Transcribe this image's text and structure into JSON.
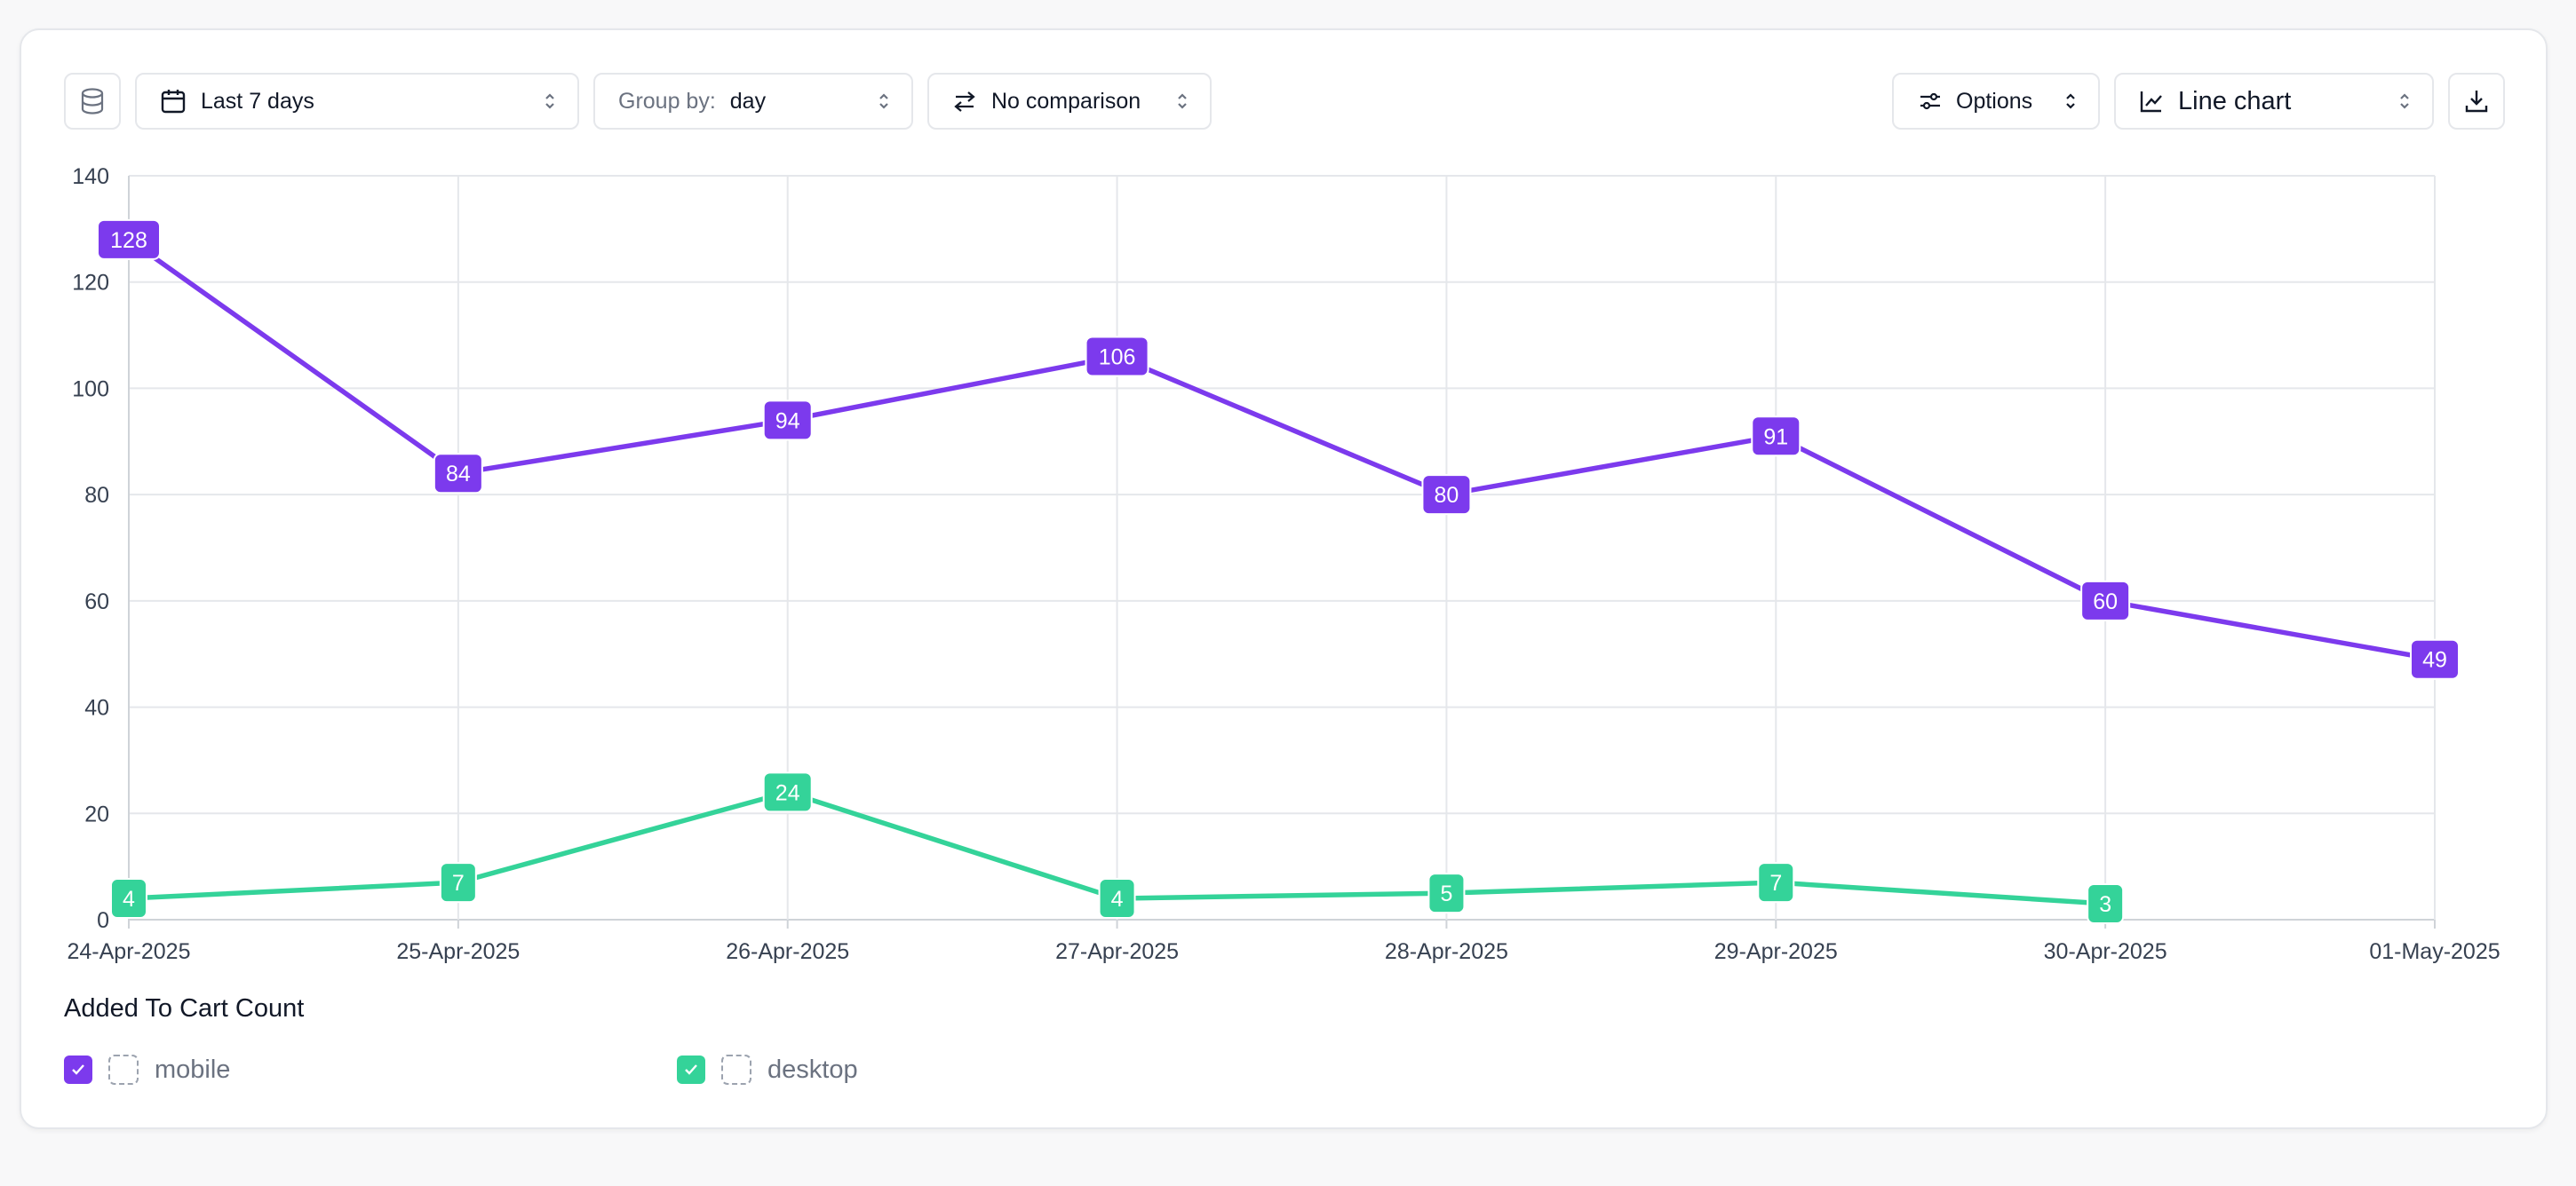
{
  "toolbar": {
    "date_range": "Last 7 days",
    "group_by_label": "Group by:",
    "group_by_value": "day",
    "comparison": "No comparison",
    "options": "Options",
    "chart_type": "Line chart"
  },
  "colors": {
    "mobile": "#7c3aed",
    "desktop": "#34d399"
  },
  "legend": {
    "title": "Added To Cart Count",
    "items": [
      {
        "name": "mobile",
        "checked": true
      },
      {
        "name": "desktop",
        "checked": true
      }
    ]
  },
  "chart_data": {
    "type": "line",
    "categories": [
      "24-Apr-2025",
      "25-Apr-2025",
      "26-Apr-2025",
      "27-Apr-2025",
      "28-Apr-2025",
      "29-Apr-2025",
      "30-Apr-2025",
      "01-May-2025"
    ],
    "ylim": [
      0,
      140
    ],
    "yticks": [
      0,
      20,
      40,
      60,
      80,
      100,
      120,
      140
    ],
    "grid": true,
    "data_labels": true,
    "series": [
      {
        "name": "mobile",
        "values": [
          128,
          84,
          94,
          106,
          80,
          91,
          60,
          49
        ]
      },
      {
        "name": "desktop",
        "values": [
          4,
          7,
          24,
          4,
          5,
          7,
          3,
          null
        ]
      }
    ]
  }
}
